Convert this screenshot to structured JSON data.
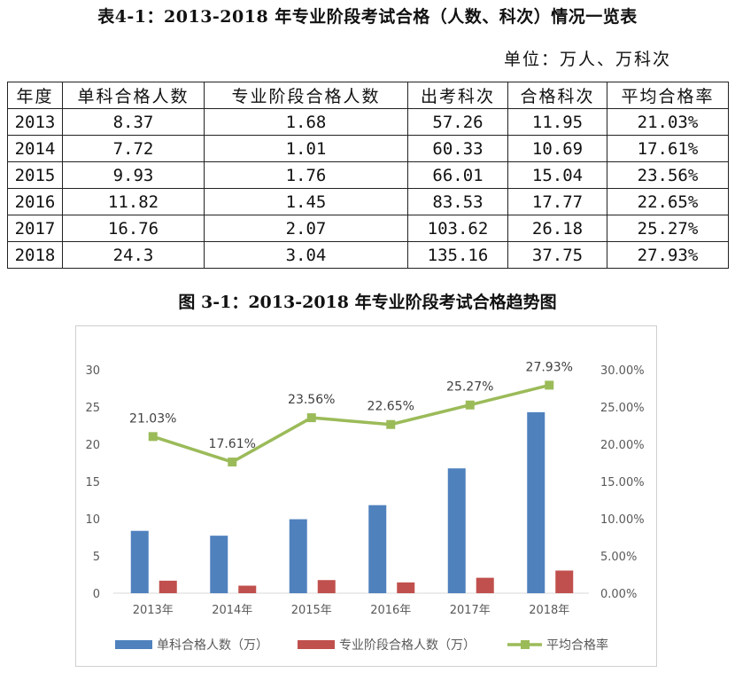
{
  "table": {
    "title": "表4-1：2013-2018 年专业阶段考试合格（人数、科次）情况一览表",
    "unit": "单位：万人、万科次",
    "headers": [
      "年度",
      "单科合格人数",
      "专业阶段合格人数",
      "出考科次",
      "合格科次",
      "平均合格率"
    ],
    "rows": [
      [
        "2013",
        "8.37",
        "1.68",
        "57.26",
        "11.95",
        "21.03%"
      ],
      [
        "2014",
        "7.72",
        "1.01",
        "60.33",
        "10.69",
        "17.61%"
      ],
      [
        "2015",
        "9.93",
        "1.76",
        "66.01",
        "15.04",
        "23.56%"
      ],
      [
        "2016",
        "11.82",
        "1.45",
        "83.53",
        "17.77",
        "22.65%"
      ],
      [
        "2017",
        "16.76",
        "2.07",
        "103.62",
        "26.18",
        "25.27%"
      ],
      [
        "2018",
        "24.3",
        "3.04",
        "135.16",
        "37.75",
        "27.93%"
      ]
    ]
  },
  "chart_title": "图 3-1：2013-2018 年专业阶段考试合格趋势图",
  "chart_data": {
    "type": "bar",
    "categories": [
      "2013年",
      "2014年",
      "2015年",
      "2016年",
      "2017年",
      "2018年"
    ],
    "series": [
      {
        "name": "单科合格人数（万）",
        "type": "bar",
        "axis": "left",
        "color": "#4f81bd",
        "values": [
          8.37,
          7.72,
          9.93,
          11.82,
          16.76,
          24.3
        ]
      },
      {
        "name": "专业阶段合格人数（万）",
        "type": "bar",
        "axis": "left",
        "color": "#c0504d",
        "values": [
          1.68,
          1.01,
          1.76,
          1.45,
          2.07,
          3.04
        ]
      },
      {
        "name": "平均合格率",
        "type": "line",
        "axis": "right",
        "color": "#9bbb59",
        "values": [
          21.03,
          17.61,
          23.56,
          22.65,
          25.27,
          27.93
        ],
        "labels": [
          "21.03%",
          "17.61%",
          "23.56%",
          "22.65%",
          "25.27%",
          "27.93%"
        ]
      }
    ],
    "ylim_left": [
      0,
      30
    ],
    "yticks_left": [
      "0",
      "5",
      "10",
      "15",
      "20",
      "25",
      "30"
    ],
    "ylim_right": [
      0,
      30
    ],
    "yticks_right": [
      "0.00%",
      "5.00%",
      "10.00%",
      "15.00%",
      "20.00%",
      "25.00%",
      "30.00%"
    ],
    "grid": false,
    "legend": "bottom"
  }
}
